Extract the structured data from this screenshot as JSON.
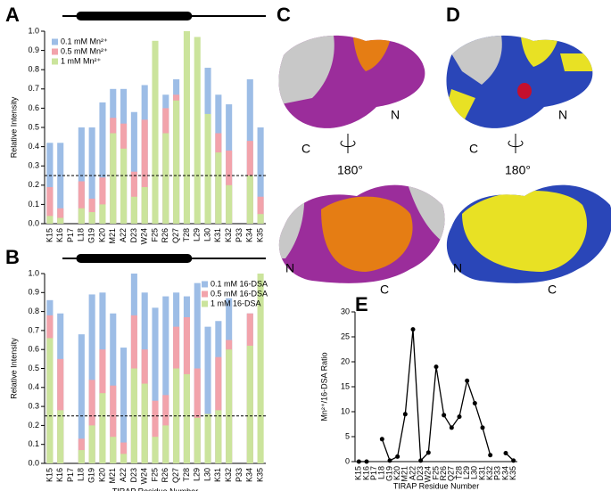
{
  "panel_labels": [
    "A",
    "B",
    "C",
    "D",
    "E"
  ],
  "structures": [
    {
      "top_labels": [
        "C",
        "N"
      ],
      "rotation": "180°",
      "bottom_labels": [
        "N",
        "C"
      ]
    },
    {
      "top_labels": [
        "C",
        "N"
      ],
      "rotation": "180°",
      "bottom_labels": [
        "N",
        "C"
      ]
    }
  ],
  "chart_data": [
    {
      "type": "bar",
      "helix_label": "α",
      "y_label": "Relative Intensity",
      "categories": [
        "K15",
        "K16",
        "P17",
        "L18",
        "G19",
        "K20",
        "M21",
        "A22",
        "D23",
        "W24",
        "F25",
        "R26",
        "Q27",
        "T28",
        "L29",
        "L30",
        "K31",
        "K32",
        "P33",
        "K34",
        "K35"
      ],
      "series": [
        {
          "name": "0.1 mM Mn²⁺",
          "color": "#9dbde6",
          "values": [
            0.42,
            0.42,
            null,
            0.5,
            0.5,
            0.63,
            0.7,
            0.7,
            0.58,
            0.72,
            null,
            0.67,
            0.75,
            null,
            null,
            0.81,
            0.67,
            0.62,
            null,
            0.75,
            0.5
          ]
        },
        {
          "name": "0.5 mM Mn²⁺",
          "color": "#f2a3ab",
          "values": [
            0.19,
            0.08,
            null,
            0.22,
            0.13,
            0.24,
            0.55,
            0.52,
            0.27,
            0.54,
            null,
            0.6,
            0.67,
            null,
            null,
            null,
            0.47,
            0.38,
            null,
            0.43,
            0.14
          ]
        },
        {
          "name": "1 mM Mn²⁺",
          "color": "#cbe49c",
          "values": [
            0.04,
            0.03,
            null,
            0.08,
            0.06,
            0.1,
            0.47,
            0.39,
            0.14,
            0.19,
            0.95,
            0.47,
            0.64,
            1.0,
            0.97,
            0.57,
            0.37,
            0.2,
            null,
            0.25,
            0.05
          ]
        }
      ],
      "ylim": [
        0,
        1
      ],
      "yticks": [
        {
          "value": 0,
          "label": "0.0"
        },
        0.1,
        0.2,
        0.3,
        0.4,
        0.5,
        0.6,
        0.7,
        0.8,
        0.9,
        {
          "value": 1,
          "label": "1.0"
        }
      ],
      "reference_line": 0.25,
      "legend": "top-left"
    },
    {
      "type": "bar",
      "helix_label": "α",
      "y_label": "Relative Intensity",
      "x_label": "TIRAP Residue Number",
      "categories": [
        "K15",
        "K16",
        "P17",
        "L18",
        "G19",
        "K20",
        "M21",
        "A22",
        "D23",
        "W24",
        "F25",
        "R26",
        "Q27",
        "T28",
        "L29",
        "L30",
        "K31",
        "K32",
        "P33",
        "K34",
        "K35"
      ],
      "series": [
        {
          "name": "0.1 mM 16-DSA",
          "color": "#9dbde6",
          "values": [
            0.86,
            0.79,
            null,
            0.68,
            0.89,
            0.9,
            0.79,
            0.61,
            1.0,
            0.9,
            0.82,
            0.88,
            0.9,
            0.88,
            0.95,
            0.72,
            0.75,
            0.87,
            null,
            0.79,
            null
          ]
        },
        {
          "name": "0.5 mM 16-DSA",
          "color": "#f2a3ab",
          "values": [
            0.78,
            0.55,
            null,
            0.13,
            0.44,
            0.6,
            0.41,
            0.11,
            0.78,
            0.6,
            0.33,
            0.36,
            0.72,
            0.77,
            0.5,
            0.26,
            0.56,
            0.65,
            null,
            0.79,
            null
          ]
        },
        {
          "name": "1 mM 16-DSA",
          "color": "#cbe49c",
          "values": [
            0.66,
            0.28,
            null,
            0.07,
            0.2,
            0.37,
            0.14,
            0.05,
            0.5,
            0.42,
            0.14,
            0.2,
            0.5,
            0.47,
            0.24,
            0.26,
            0.28,
            0.6,
            null,
            0.62,
            1.0
          ]
        }
      ],
      "ylim": [
        0,
        1
      ],
      "yticks": [
        {
          "value": 0,
          "label": "0.0"
        },
        0.1,
        0.2,
        0.3,
        0.4,
        0.5,
        0.6,
        0.7,
        0.8,
        0.9,
        {
          "value": 1,
          "label": "1.0"
        }
      ],
      "reference_line": 0.25,
      "legend": "top-right"
    },
    {
      "type": "line",
      "y_label": "Mn²⁺/16-DSA Ratio",
      "x_label": "TIRAP Residue Number",
      "color": "#000000",
      "categories": [
        "K15",
        "K16",
        "P17",
        "L18",
        "G19",
        "K20",
        "M21",
        "A22",
        "D23",
        "W24",
        "F25",
        "R26",
        "Q27",
        "T28",
        "L29",
        "L30",
        "K31",
        "K32",
        "P33",
        "K34",
        "K35"
      ],
      "values": [
        0,
        0,
        null,
        4.5,
        0.2,
        1,
        9.5,
        26.5,
        0.2,
        1.8,
        19,
        9.3,
        6.8,
        9,
        16.2,
        11.7,
        6.8,
        1.3,
        null,
        1.7,
        0.2
      ],
      "ylim": [
        0,
        30
      ],
      "yticks": [
        0,
        5,
        10,
        15,
        20,
        25,
        30
      ]
    }
  ]
}
